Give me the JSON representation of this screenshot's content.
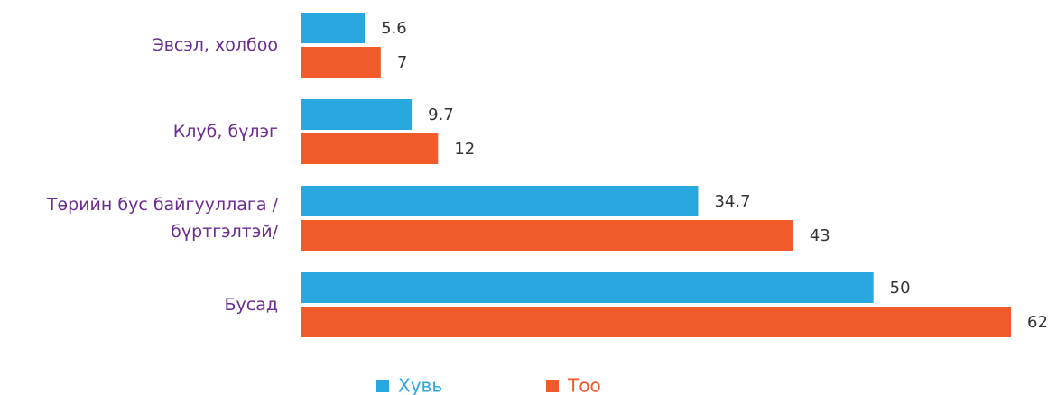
{
  "chart_data": {
    "type": "bar",
    "orientation": "horizontal",
    "categories": [
      "Эвсэл, холбоо",
      "Клуб, бүлэг",
      "Төрийн бус байгууллага /бүртгэлтэй/",
      "Бусад"
    ],
    "series": [
      {
        "name": "Хувь",
        "color": "#29a8e0",
        "values": [
          5.6,
          9.7,
          34.7,
          50
        ]
      },
      {
        "name": "Тоо",
        "color": "#f15a2b",
        "values": [
          7,
          12,
          43,
          62
        ]
      }
    ],
    "legend": "bottom"
  }
}
